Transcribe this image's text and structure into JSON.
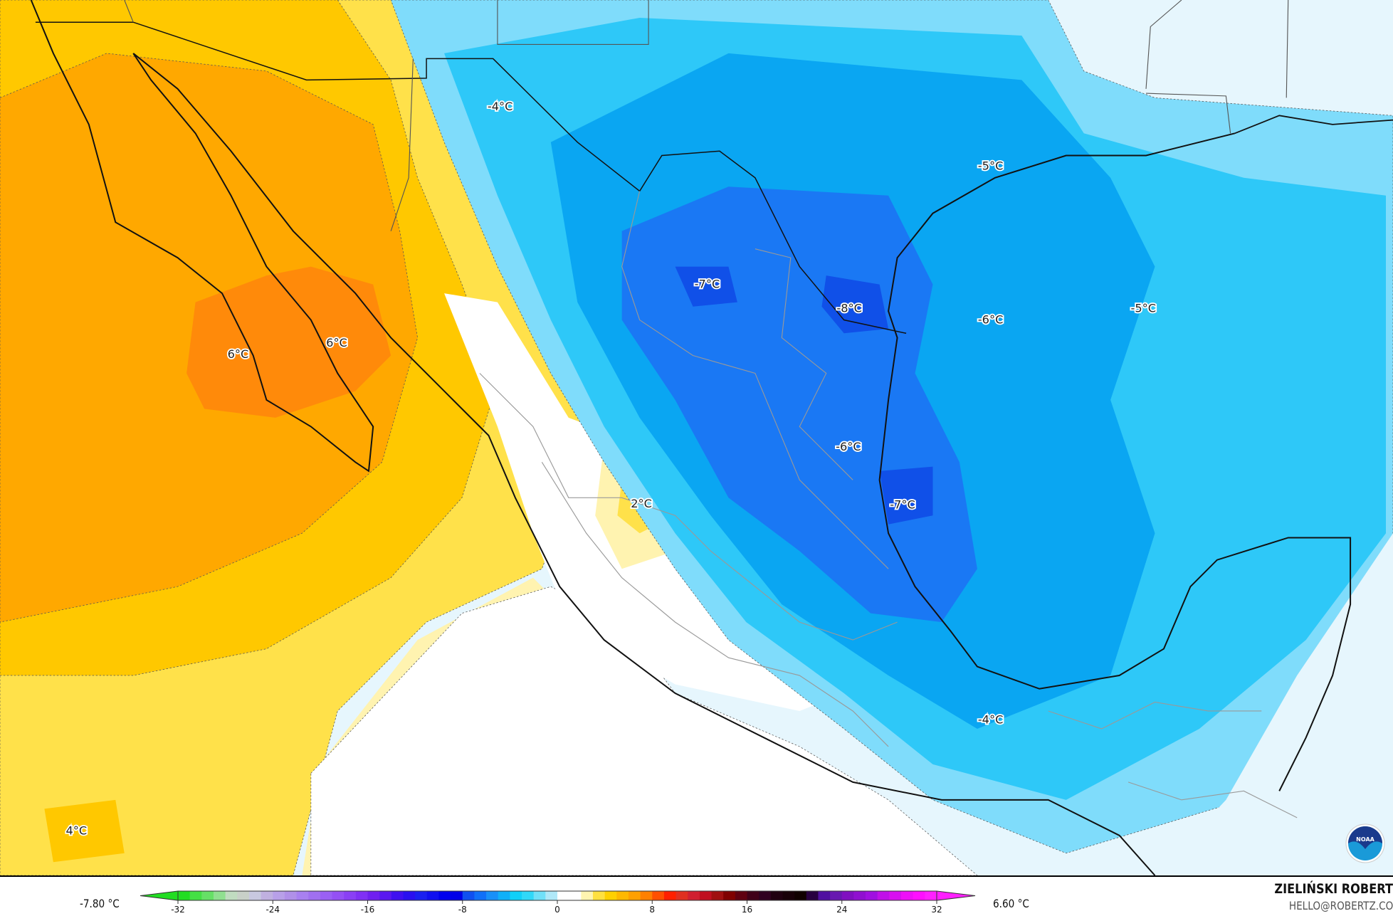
{
  "map": {
    "temperature_labels": [
      {
        "text": "-4°C",
        "lon_region": "northern Mexico / Arizona border"
      },
      {
        "text": "-5°C",
        "lon_region": "Texas coast"
      },
      {
        "text": "-7°C",
        "lon_region": "Chihuahua/Coahuila"
      },
      {
        "text": "-8°C",
        "lon_region": "Nuevo León / Tamaulipas"
      },
      {
        "text": "-6°C",
        "lon_region": "western Gulf of Mexico"
      },
      {
        "text": "-5°C",
        "lon_region": "central Gulf of Mexico"
      },
      {
        "text": "6°C",
        "lon_region": "Baja California Sur"
      },
      {
        "text": "6°C",
        "lon_region": "Gulf of California"
      },
      {
        "text": "-6°C",
        "lon_region": "San Luis Potosí"
      },
      {
        "text": "2°C",
        "lon_region": "Jalisco / Zacatecas"
      },
      {
        "text": "-7°C",
        "lon_region": "Tamaulipas coast"
      },
      {
        "text": "-4°C",
        "lon_region": "Veracruz / Oaxaca"
      },
      {
        "text": "4°C",
        "lon_region": "eastern Pacific"
      }
    ],
    "colors": {
      "warm_dark": "#ff8a0a",
      "warm": "#ffa800",
      "warm_light": "#ffc800",
      "yellow": "#ffe14a",
      "pale_yellow": "#fff3b0",
      "neutral": "#ffffff",
      "pale_blue": "#e6f6fd",
      "light_blue": "#7fdcfb",
      "cyan": "#2ec8f8",
      "blue": "#0aa6f2",
      "deep_blue": "#1a78f4",
      "deepest_blue": "#1050e8"
    },
    "logo": "NOAA"
  },
  "legend": {
    "min_label": "-7.80 °C",
    "max_label": "6.60 °C",
    "ticks": [
      "-32",
      "-24",
      "-16",
      "-8",
      "0",
      "8",
      "16",
      "24",
      "32"
    ],
    "range": [
      -32,
      32
    ],
    "colors": [
      "#22dd22",
      "#44e044",
      "#66e066",
      "#90e090",
      "#c0dcc0",
      "#c8d0c8",
      "#c8c8e0",
      "#c0b0e0",
      "#b8a0e8",
      "#b090e8",
      "#a880f0",
      "#a070f0",
      "#9a60f4",
      "#9450f4",
      "#8a40f4",
      "#8030f4",
      "#7020f0",
      "#5a18f0",
      "#4010f0",
      "#2a10f0",
      "#1a20f0",
      "#1010f0",
      "#0000ee",
      "#0000e8",
      "#1050f0",
      "#1070f8",
      "#1890f8",
      "#10b0f8",
      "#10d0f8",
      "#30d8f8",
      "#70e0f8",
      "#b0e8f8",
      "#ffffff",
      "#ffffff",
      "#fff4b0",
      "#ffe040",
      "#ffd000",
      "#ffb800",
      "#ffa000",
      "#ff8000",
      "#ff5000",
      "#ff2000",
      "#e03020",
      "#d02030",
      "#c01020",
      "#a01010",
      "#800000",
      "#600010",
      "#400018",
      "#300020",
      "#200010",
      "#180008",
      "#100000",
      "#280040",
      "#5010a0",
      "#6818b0",
      "#8010c0",
      "#9010d0",
      "#a010e0",
      "#c010e8",
      "#d810f0",
      "#ee10f8",
      "#ff10ff",
      "#ff20ff"
    ]
  },
  "credits": {
    "author": "ZIELIŃSKI ROBERT",
    "email": "HELLO@ROBERTZ.CO"
  }
}
